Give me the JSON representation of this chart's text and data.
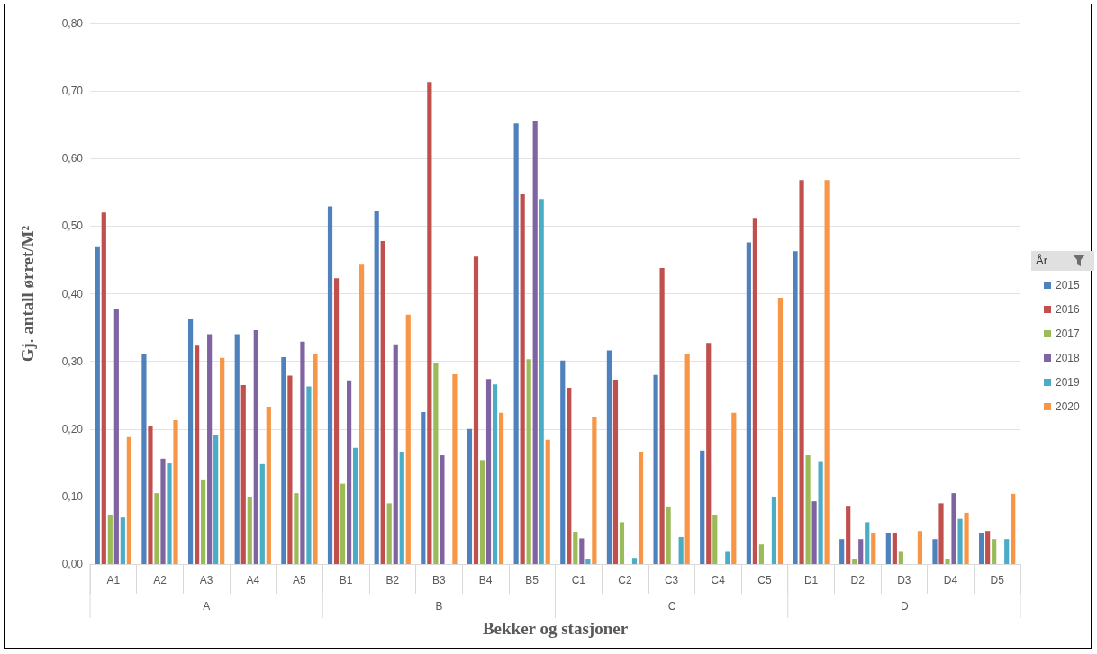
{
  "chart_data": {
    "type": "bar",
    "xlabel": "Bekker og stasjoner",
    "ylabel": "Gj. antall ørret/M²",
    "legend_title": "År",
    "categories": [
      "A1",
      "A2",
      "A3",
      "A4",
      "A5",
      "B1",
      "B2",
      "B3",
      "B4",
      "B5",
      "C1",
      "C2",
      "C3",
      "C4",
      "C5",
      "D1",
      "D2",
      "D3",
      "D4",
      "D5"
    ],
    "series": [
      {
        "name": "2015",
        "color": "#4f81bd",
        "values": [
          0.469,
          0.311,
          0.362,
          0.34,
          0.306,
          0.529,
          0.522,
          0.225,
          0.2,
          0.652,
          0.301,
          0.316,
          0.28,
          0.168,
          0.476,
          0.463,
          0.037,
          0.046,
          0.037,
          0.046
        ]
      },
      {
        "name": "2016",
        "color": "#c0504d",
        "values": [
          0.52,
          0.204,
          0.323,
          0.265,
          0.279,
          0.423,
          0.478,
          0.713,
          0.455,
          0.547,
          0.261,
          0.273,
          0.438,
          0.327,
          0.512,
          0.568,
          0.085,
          0.046,
          0.09,
          0.049
        ]
      },
      {
        "name": "2017",
        "color": "#9bbb59",
        "values": [
          0.072,
          0.105,
          0.124,
          0.099,
          0.105,
          0.119,
          0.09,
          0.297,
          0.154,
          0.303,
          0.048,
          0.062,
          0.084,
          0.072,
          0.029,
          0.161,
          0.008,
          0.018,
          0.008,
          0.037
        ]
      },
      {
        "name": "2018",
        "color": "#8064a2",
        "values": [
          0.378,
          0.156,
          0.34,
          0.346,
          0.329,
          0.272,
          0.325,
          0.161,
          0.274,
          0.656,
          0.038,
          null,
          null,
          null,
          null,
          0.093,
          0.037,
          null,
          0.105,
          null
        ]
      },
      {
        "name": "2019",
        "color": "#4bacc6",
        "values": [
          0.069,
          0.149,
          0.191,
          0.148,
          0.263,
          0.172,
          0.165,
          null,
          0.266,
          0.54,
          0.008,
          0.009,
          0.04,
          0.018,
          0.099,
          0.151,
          0.062,
          null,
          0.067,
          0.037
        ]
      },
      {
        "name": "2020",
        "color": "#f79646",
        "values": [
          0.188,
          0.213,
          0.305,
          0.233,
          0.311,
          0.443,
          0.369,
          0.281,
          0.224,
          0.184,
          0.218,
          0.166,
          0.31,
          0.224,
          0.394,
          0.568,
          0.046,
          0.049,
          0.076,
          0.104
        ]
      }
    ],
    "ylim": [
      0,
      0.8
    ],
    "yticks": [
      {
        "value": 0,
        "label": "0,00"
      },
      {
        "value": 0.1,
        "label": "0,10"
      },
      {
        "value": 0.2,
        "label": "0,20"
      },
      {
        "value": 0.3,
        "label": "0,30"
      },
      {
        "value": 0.4,
        "label": "0,40"
      },
      {
        "value": 0.5,
        "label": "0,50"
      },
      {
        "value": 0.6,
        "label": "0,60"
      },
      {
        "value": 0.7,
        "label": "0,70"
      },
      {
        "value": 0.8,
        "label": "0,80"
      }
    ],
    "grid": "y",
    "legend": "right",
    "annotations": [
      "A",
      "B",
      "C",
      "D"
    ]
  }
}
